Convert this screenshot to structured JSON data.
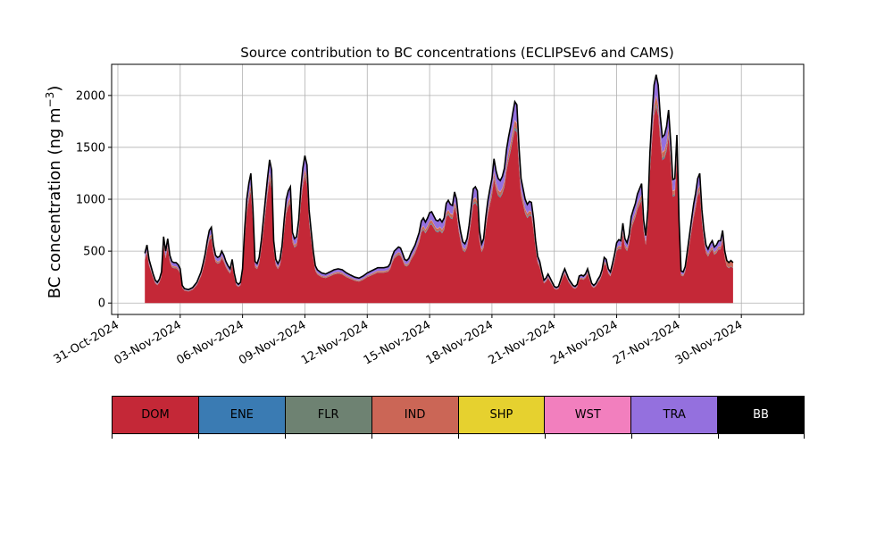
{
  "chart_data": {
    "type": "area",
    "stacked": true,
    "title": "Source contribution to BC concentrations (ECLIPSEv6 and CAMS)",
    "ylabel_main": "BC concentration (ng m",
    "ylabel_sup": "−3",
    "ylabel_close": ")",
    "xlabel": "",
    "ylim": [
      -110,
      2300
    ],
    "xlim_days": [
      -0.3,
      33.0
    ],
    "grid": true,
    "y_ticks": [
      0,
      500,
      1000,
      1500,
      2000
    ],
    "x_ticks": [
      {
        "label": "31-Oct-2024",
        "day": 0
      },
      {
        "label": "03-Nov-2024",
        "day": 3
      },
      {
        "label": "06-Nov-2024",
        "day": 6
      },
      {
        "label": "09-Nov-2024",
        "day": 9
      },
      {
        "label": "12-Nov-2024",
        "day": 12
      },
      {
        "label": "15-Nov-2024",
        "day": 15
      },
      {
        "label": "18-Nov-2024",
        "day": 18
      },
      {
        "label": "21-Nov-2024",
        "day": 21
      },
      {
        "label": "24-Nov-2024",
        "day": 24
      },
      {
        "label": "27-Nov-2024",
        "day": 27
      },
      {
        "label": "30-Nov-2024",
        "day": 30
      }
    ],
    "total_points": [
      [
        1.3,
        480
      ],
      [
        1.4,
        560
      ],
      [
        1.5,
        420
      ],
      [
        1.7,
        280
      ],
      [
        1.8,
        220
      ],
      [
        1.9,
        200
      ],
      [
        2.0,
        230
      ],
      [
        2.1,
        300
      ],
      [
        2.2,
        640
      ],
      [
        2.3,
        500
      ],
      [
        2.4,
        620
      ],
      [
        2.5,
        460
      ],
      [
        2.6,
        400
      ],
      [
        2.7,
        390
      ],
      [
        2.8,
        390
      ],
      [
        2.9,
        370
      ],
      [
        3.0,
        330
      ],
      [
        3.1,
        170
      ],
      [
        3.2,
        140
      ],
      [
        3.4,
        130
      ],
      [
        3.6,
        150
      ],
      [
        3.8,
        200
      ],
      [
        4.0,
        300
      ],
      [
        4.1,
        380
      ],
      [
        4.2,
        470
      ],
      [
        4.3,
        600
      ],
      [
        4.4,
        700
      ],
      [
        4.5,
        730
      ],
      [
        4.6,
        560
      ],
      [
        4.7,
        460
      ],
      [
        4.8,
        440
      ],
      [
        4.9,
        450
      ],
      [
        5.0,
        500
      ],
      [
        5.1,
        460
      ],
      [
        5.2,
        400
      ],
      [
        5.3,
        360
      ],
      [
        5.4,
        330
      ],
      [
        5.5,
        420
      ],
      [
        5.6,
        290
      ],
      [
        5.7,
        200
      ],
      [
        5.8,
        180
      ],
      [
        5.9,
        200
      ],
      [
        6.0,
        330
      ],
      [
        6.1,
        700
      ],
      [
        6.2,
        1000
      ],
      [
        6.3,
        1150
      ],
      [
        6.4,
        1250
      ],
      [
        6.5,
        900
      ],
      [
        6.6,
        400
      ],
      [
        6.7,
        380
      ],
      [
        6.8,
        440
      ],
      [
        6.9,
        600
      ],
      [
        7.0,
        800
      ],
      [
        7.1,
        1000
      ],
      [
        7.2,
        1200
      ],
      [
        7.3,
        1380
      ],
      [
        7.4,
        1280
      ],
      [
        7.5,
        600
      ],
      [
        7.6,
        420
      ],
      [
        7.7,
        380
      ],
      [
        7.8,
        420
      ],
      [
        7.9,
        550
      ],
      [
        8.0,
        800
      ],
      [
        8.1,
        1000
      ],
      [
        8.2,
        1080
      ],
      [
        8.3,
        1120
      ],
      [
        8.4,
        680
      ],
      [
        8.5,
        620
      ],
      [
        8.6,
        640
      ],
      [
        8.7,
        800
      ],
      [
        8.8,
        1100
      ],
      [
        8.9,
        1300
      ],
      [
        9.0,
        1420
      ],
      [
        9.1,
        1330
      ],
      [
        9.2,
        900
      ],
      [
        9.3,
        700
      ],
      [
        9.4,
        500
      ],
      [
        9.5,
        360
      ],
      [
        9.6,
        320
      ],
      [
        9.8,
        290
      ],
      [
        10.0,
        280
      ],
      [
        10.2,
        300
      ],
      [
        10.4,
        320
      ],
      [
        10.6,
        330
      ],
      [
        10.8,
        320
      ],
      [
        11.0,
        290
      ],
      [
        11.2,
        270
      ],
      [
        11.4,
        250
      ],
      [
        11.6,
        240
      ],
      [
        11.8,
        260
      ],
      [
        12.0,
        290
      ],
      [
        12.2,
        310
      ],
      [
        12.4,
        330
      ],
      [
        12.5,
        340
      ],
      [
        12.6,
        340
      ],
      [
        12.8,
        340
      ],
      [
        13.0,
        350
      ],
      [
        13.1,
        380
      ],
      [
        13.2,
        450
      ],
      [
        13.3,
        500
      ],
      [
        13.4,
        520
      ],
      [
        13.5,
        540
      ],
      [
        13.6,
        530
      ],
      [
        13.7,
        480
      ],
      [
        13.8,
        420
      ],
      [
        13.9,
        410
      ],
      [
        14.0,
        430
      ],
      [
        14.1,
        480
      ],
      [
        14.2,
        520
      ],
      [
        14.3,
        560
      ],
      [
        14.4,
        620
      ],
      [
        14.5,
        680
      ],
      [
        14.6,
        790
      ],
      [
        14.7,
        820
      ],
      [
        14.8,
        780
      ],
      [
        14.9,
        820
      ],
      [
        15.0,
        870
      ],
      [
        15.1,
        880
      ],
      [
        15.2,
        840
      ],
      [
        15.3,
        800
      ],
      [
        15.4,
        790
      ],
      [
        15.5,
        810
      ],
      [
        15.6,
        780
      ],
      [
        15.7,
        820
      ],
      [
        15.8,
        960
      ],
      [
        15.9,
        990
      ],
      [
        16.0,
        950
      ],
      [
        16.1,
        940
      ],
      [
        16.2,
        1070
      ],
      [
        16.3,
        1000
      ],
      [
        16.4,
        800
      ],
      [
        16.5,
        680
      ],
      [
        16.6,
        590
      ],
      [
        16.7,
        570
      ],
      [
        16.8,
        620
      ],
      [
        16.9,
        750
      ],
      [
        17.0,
        920
      ],
      [
        17.1,
        1100
      ],
      [
        17.2,
        1120
      ],
      [
        17.3,
        1080
      ],
      [
        17.4,
        700
      ],
      [
        17.5,
        570
      ],
      [
        17.6,
        620
      ],
      [
        17.7,
        820
      ],
      [
        17.8,
        980
      ],
      [
        17.9,
        1100
      ],
      [
        18.0,
        1200
      ],
      [
        18.1,
        1390
      ],
      [
        18.2,
        1270
      ],
      [
        18.3,
        1200
      ],
      [
        18.4,
        1180
      ],
      [
        18.5,
        1220
      ],
      [
        18.6,
        1300
      ],
      [
        18.7,
        1480
      ],
      [
        18.8,
        1600
      ],
      [
        18.9,
        1700
      ],
      [
        19.0,
        1830
      ],
      [
        19.1,
        1940
      ],
      [
        19.2,
        1910
      ],
      [
        19.3,
        1500
      ],
      [
        19.4,
        1200
      ],
      [
        19.5,
        1100
      ],
      [
        19.6,
        1000
      ],
      [
        19.7,
        950
      ],
      [
        19.8,
        980
      ],
      [
        19.9,
        970
      ],
      [
        20.0,
        820
      ],
      [
        20.1,
        600
      ],
      [
        20.2,
        450
      ],
      [
        20.3,
        400
      ],
      [
        20.4,
        300
      ],
      [
        20.5,
        220
      ],
      [
        20.6,
        240
      ],
      [
        20.7,
        280
      ],
      [
        20.8,
        240
      ],
      [
        20.9,
        200
      ],
      [
        21.0,
        160
      ],
      [
        21.1,
        150
      ],
      [
        21.2,
        160
      ],
      [
        21.3,
        220
      ],
      [
        21.4,
        280
      ],
      [
        21.5,
        330
      ],
      [
        21.6,
        280
      ],
      [
        21.7,
        230
      ],
      [
        21.8,
        200
      ],
      [
        21.9,
        170
      ],
      [
        22.0,
        160
      ],
      [
        22.1,
        180
      ],
      [
        22.2,
        260
      ],
      [
        22.3,
        270
      ],
      [
        22.4,
        260
      ],
      [
        22.5,
        280
      ],
      [
        22.6,
        330
      ],
      [
        22.7,
        260
      ],
      [
        22.8,
        190
      ],
      [
        22.9,
        170
      ],
      [
        23.0,
        190
      ],
      [
        23.1,
        230
      ],
      [
        23.2,
        260
      ],
      [
        23.3,
        320
      ],
      [
        23.4,
        440
      ],
      [
        23.5,
        420
      ],
      [
        23.6,
        330
      ],
      [
        23.7,
        300
      ],
      [
        23.8,
        380
      ],
      [
        23.9,
        470
      ],
      [
        24.0,
        580
      ],
      [
        24.1,
        610
      ],
      [
        24.2,
        600
      ],
      [
        24.3,
        770
      ],
      [
        24.4,
        620
      ],
      [
        24.5,
        580
      ],
      [
        24.6,
        660
      ],
      [
        24.7,
        830
      ],
      [
        24.8,
        900
      ],
      [
        24.9,
        960
      ],
      [
        25.0,
        1050
      ],
      [
        25.1,
        1100
      ],
      [
        25.2,
        1150
      ],
      [
        25.3,
        800
      ],
      [
        25.4,
        650
      ],
      [
        25.5,
        900
      ],
      [
        25.6,
        1450
      ],
      [
        25.7,
        1800
      ],
      [
        25.8,
        2100
      ],
      [
        25.9,
        2200
      ],
      [
        26.0,
        2100
      ],
      [
        26.1,
        1800
      ],
      [
        26.2,
        1600
      ],
      [
        26.3,
        1620
      ],
      [
        26.4,
        1700
      ],
      [
        26.5,
        1860
      ],
      [
        26.6,
        1550
      ],
      [
        26.7,
        1190
      ],
      [
        26.8,
        1200
      ],
      [
        26.9,
        1620
      ],
      [
        27.0,
        800
      ],
      [
        27.1,
        310
      ],
      [
        27.2,
        300
      ],
      [
        27.3,
        350
      ],
      [
        27.4,
        500
      ],
      [
        27.5,
        650
      ],
      [
        27.6,
        800
      ],
      [
        27.7,
        950
      ],
      [
        27.8,
        1060
      ],
      [
        27.9,
        1200
      ],
      [
        28.0,
        1250
      ],
      [
        28.1,
        900
      ],
      [
        28.2,
        700
      ],
      [
        28.3,
        560
      ],
      [
        28.4,
        520
      ],
      [
        28.5,
        570
      ],
      [
        28.6,
        600
      ],
      [
        28.7,
        540
      ],
      [
        28.8,
        560
      ],
      [
        28.9,
        600
      ],
      [
        29.0,
        600
      ],
      [
        29.1,
        700
      ],
      [
        29.2,
        500
      ],
      [
        29.3,
        410
      ],
      [
        29.4,
        390
      ],
      [
        29.5,
        410
      ],
      [
        29.6,
        390
      ]
    ]
  },
  "legend": {
    "items": [
      {
        "label": "DOM",
        "color": "#c42837",
        "text_color": "#000000"
      },
      {
        "label": "ENE",
        "color": "#3a7bb3",
        "text_color": "#000000"
      },
      {
        "label": "FLR",
        "color": "#6e8272",
        "text_color": "#000000"
      },
      {
        "label": "IND",
        "color": "#cb6656",
        "text_color": "#000000"
      },
      {
        "label": "SHP",
        "color": "#e6d12f",
        "text_color": "#000000"
      },
      {
        "label": "WST",
        "color": "#f27fbe",
        "text_color": "#000000"
      },
      {
        "label": "TRA",
        "color": "#9470de",
        "text_color": "#000000"
      },
      {
        "label": "BB",
        "color": "#000000",
        "text_color": "#ffffff"
      }
    ]
  }
}
